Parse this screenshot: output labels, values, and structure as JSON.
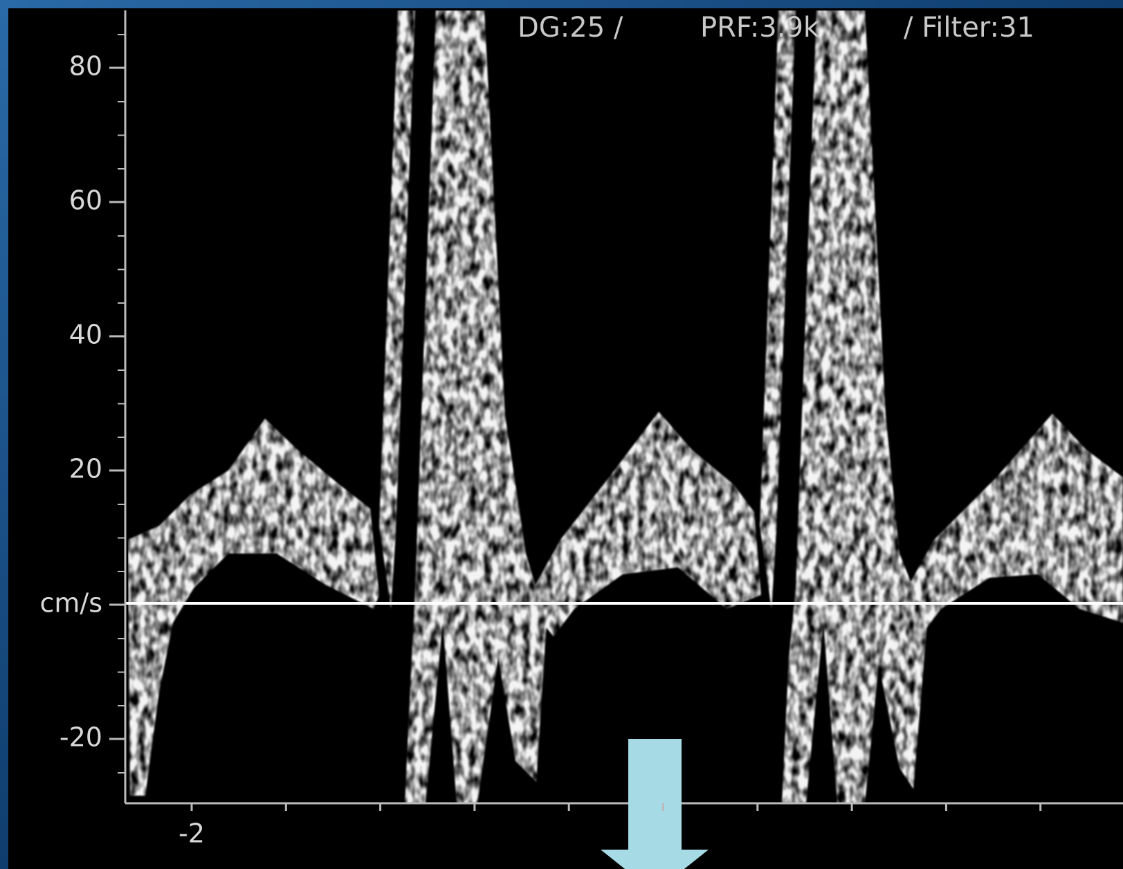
{
  "header": {
    "settings": [
      "DG:25 /",
      "PRF:3.9k",
      "/ Filter:31"
    ]
  },
  "axis": {
    "y_labels": [
      "80",
      "60",
      "40",
      "20",
      "cm/s",
      "-20"
    ],
    "x_labels": [
      "-2"
    ]
  }
}
